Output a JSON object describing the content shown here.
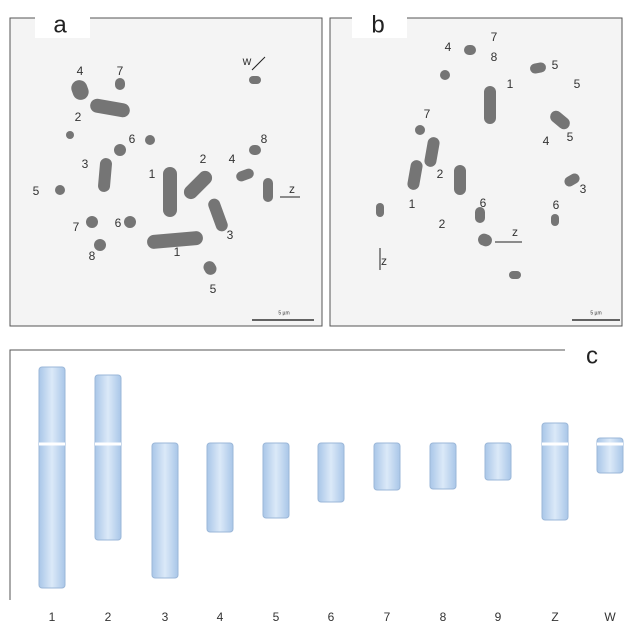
{
  "panels": [
    {
      "label": "a",
      "scale_bar": "5 µm",
      "annotations": [
        "4",
        "7",
        "w",
        "2",
        "6",
        "3",
        "1",
        "2",
        "4",
        "8",
        "z",
        "5",
        "7",
        "6",
        "8",
        "1",
        "3",
        "5"
      ]
    },
    {
      "label": "b",
      "scale_bar": "5 µm",
      "annotations": [
        "4",
        "7",
        "8",
        "5",
        "1",
        "5",
        "7",
        "5",
        "4",
        "2",
        "1",
        "2",
        "6",
        "z",
        "z",
        "3",
        "6"
      ]
    }
  ],
  "ideogram": {
    "label": "c",
    "chromosomes": [
      "1",
      "2",
      "3",
      "4",
      "5",
      "6",
      "7",
      "8",
      "9",
      "Z",
      "W"
    ]
  }
}
